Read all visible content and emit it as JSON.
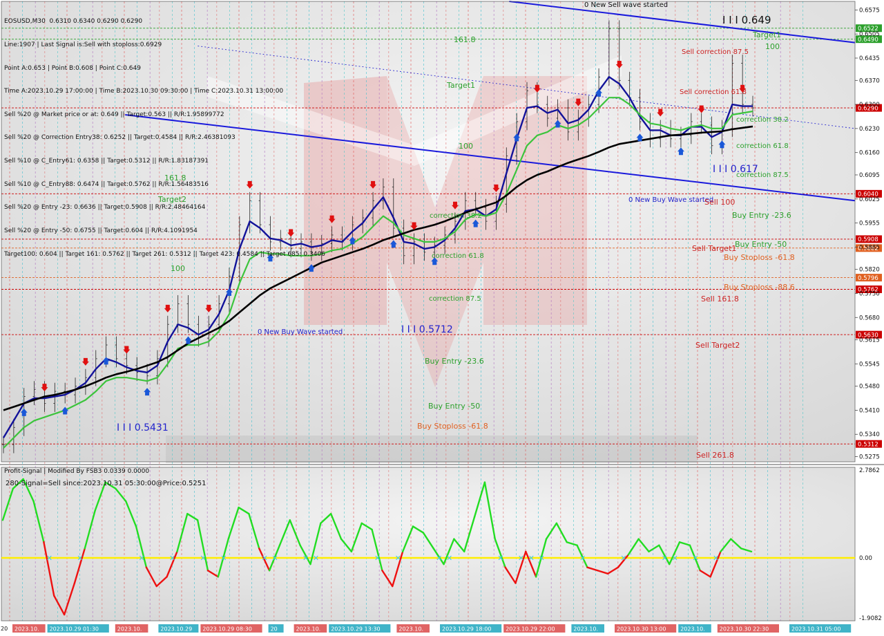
{
  "header": {
    "lines": [
      "EOSUSD,M30  0.6310 0.6340 0.6290 0.6290",
      "Line:1907 | Last Signal is:Sell with stoploss:0.6929",
      "Point A:0.653 | Point B:0.608 | Point C:0.649",
      "Time A:2023.10.29 17:00:00 | Time B:2023.10.30 09:30:00 | Time C:2023.10.31 13:00:00",
      "Sell %20 @ Market price or at: 0.649 || Target:0.563 || R/R:1.95899772",
      "Sell %20 @ Correction Entry38: 0.6252 || Target:0.4584 || R/R:2.46381093",
      "Sell %10 @ C_Entry61: 0.6358 || Target:0.5312 || R/R:1.83187391",
      "Sell %10 @ C_Entry88: 0.6474 || Target:0.5762 || R/R:1.5648351​6",
      "Sell %20 @ Entry -23: 0.6636 || Target:0.5908 || R/R:2.48464164",
      "Sell %20 @ Entry -50: 0.6755 || Target:0.604 || R/R:4.1091954",
      "Target100: 0.604 || Target 161: 0.5762 || Target 261: 0.5312 || Target 423: 0.4584 || Target 685: 0.3406"
    ]
  },
  "indicator": {
    "title": "Profit-Signal | Modified By FSB3 0.0339 0.0000",
    "signal": "280-Signal=Sell since:2023.10.31 05:30:00@Price:0.5251",
    "ticks": [
      "2.7862",
      "0.00",
      "-1.9082"
    ]
  },
  "price_axis": {
    "ticks": [
      "0.6575",
      "0.6505",
      "0.6435",
      "0.6370",
      "0.6300",
      "0.6230",
      "0.6160",
      "0.6095",
      "0.6025",
      "0.5955",
      "0.5885",
      "0.5820",
      "0.5750",
      "0.5680",
      "0.5615",
      "0.5545",
      "0.5480",
      "0.5410",
      "0.5340",
      "0.5275"
    ]
  },
  "levels": [
    {
      "label": "0.6522",
      "color": "#2ca02c"
    },
    {
      "label": "0.6490",
      "color": "#2ca02c"
    },
    {
      "label": "0.6290",
      "color": "#cc0000"
    },
    {
      "label": "0.6040",
      "color": "#cc0000"
    },
    {
      "label": "0.5908",
      "color": "#cc0000"
    },
    {
      "label": "0.5882",
      "color": "#e06020"
    },
    {
      "label": "0.5796",
      "color": "#e06020"
    },
    {
      "label": "0.5762",
      "color": "#cc0000"
    },
    {
      "label": "0.5630",
      "color": "#cc0000"
    },
    {
      "label": "0.5312",
      "color": "#cc0000"
    }
  ],
  "annotations": [
    {
      "text": "I I I 0.649",
      "color": "#111111"
    },
    {
      "text": "Target1",
      "color": "#2ca02c"
    },
    {
      "text": "100",
      "color": "#2ca02c"
    },
    {
      "text": "Sell correction 87.5",
      "color": "#cc2222"
    },
    {
      "text": "Sell correction 61.8",
      "color": "#cc2222"
    },
    {
      "text": "correction 38.2",
      "color": "#2ca02c"
    },
    {
      "text": "correction 61.8",
      "color": "#2ca02c"
    },
    {
      "text": "correction 87.5",
      "color": "#2ca02c"
    },
    {
      "text": "I I I 0.617",
      "color": "#2222cc"
    },
    {
      "text": "0 New Buy Wave started",
      "color": "#2222cc"
    },
    {
      "text": "Sell 100",
      "color": "#cc2222"
    },
    {
      "text": "Buy Entry -23.6",
      "color": "#2ca02c"
    },
    {
      "text": "Buy Entry -50",
      "color": "#2ca02c"
    },
    {
      "text": "Sell Target1",
      "color": "#cc2222"
    },
    {
      "text": "Buy Stoploss -61.8",
      "color": "#e06020"
    },
    {
      "text": "Buy Stoploss -88.6",
      "color": "#e06020"
    },
    {
      "text": "Sell 161.8",
      "color": "#cc2222"
    },
    {
      "text": "Sell Target2",
      "color": "#cc2222"
    },
    {
      "text": "Sell  261.8",
      "color": "#cc2222"
    },
    {
      "text": "161.8",
      "color": "#2ca02c"
    },
    {
      "text": "Target1",
      "color": "#2ca02c"
    },
    {
      "text": "100",
      "color": "#2ca02c"
    },
    {
      "text": "161.8",
      "color": "#2ca02c"
    },
    {
      "text": "Target2",
      "color": "#2ca02c"
    },
    {
      "text": "100",
      "color": "#2ca02c"
    },
    {
      "text": "correction 38.2",
      "color": "#2ca02c"
    },
    {
      "text": "correction 61.8",
      "color": "#2ca02c"
    },
    {
      "text": "correction 87.5",
      "color": "#2ca02c"
    },
    {
      "text": "I I I 0.5712",
      "color": "#2222cc"
    },
    {
      "text": "0 New Buy Wave started",
      "color": "#2222cc"
    },
    {
      "text": "Buy Entry -23.6",
      "color": "#2ca02c"
    },
    {
      "text": "Buy Entry -50",
      "color": "#2ca02c"
    },
    {
      "text": "Buy Stoploss -61.8",
      "color": "#e06020"
    },
    {
      "text": "I I I 0.5431",
      "color": "#2222cc"
    },
    {
      "text": "0 New Sell wave started",
      "color": "#111111"
    }
  ],
  "time_axis": {
    "labels": [
      "2023.10.",
      "2023.10.29 01:30",
      "2023.10.",
      "2023.10.29",
      "2023.10.29 08:30",
      "20",
      "2023.10.",
      "2023.10.29 13:30",
      "2023.10.",
      "2023.10.29 18:00",
      "2023.10.29 22:00",
      "2023.10.",
      "2023.10.30 13:00",
      "2023.10.",
      "2023.10.30 22:30",
      "2023.10.31 05:00"
    ],
    "prefix": "20"
  },
  "chart_data": {
    "type": "line",
    "title": "EOSUSD,M30",
    "ylim": [
      0.526,
      0.66
    ],
    "series": [
      {
        "name": "price",
        "values": [
          0.531,
          0.536,
          0.545,
          0.547,
          0.543,
          0.5465,
          0.5455,
          0.548,
          0.5505,
          0.556,
          0.56,
          0.556,
          0.554,
          0.552,
          0.551,
          0.556,
          0.566,
          0.572,
          0.566,
          0.562,
          0.566,
          0.572,
          0.58,
          0.595,
          0.602,
          0.595,
          0.59,
          0.591,
          0.588,
          0.59,
          0.587,
          0.5895,
          0.592,
          0.59,
          0.595,
          0.597,
          0.602,
          0.606,
          0.594,
          0.586,
          0.59,
          0.587,
          0.589,
          0.592,
          0.596,
          0.602,
          0.6,
          0.596,
          0.601,
          0.615,
          0.625,
          0.634,
          0.63,
          0.626,
          0.629,
          0.622,
          0.626,
          0.63,
          0.638,
          0.652,
          0.637,
          0.632,
          0.625,
          0.62,
          0.623,
          0.62,
          0.621,
          0.625,
          0.624,
          0.618,
          0.623,
          0.642,
          0.63,
          0.629
        ]
      },
      {
        "name": "ma-fast",
        "values": [
          0.533,
          0.538,
          0.543,
          0.5445,
          0.5445,
          0.545,
          0.5455,
          0.547,
          0.549,
          0.553,
          0.556,
          0.555,
          0.5535,
          0.5525,
          0.552,
          0.554,
          0.561,
          0.566,
          0.565,
          0.563,
          0.5645,
          0.569,
          0.576,
          0.588,
          0.596,
          0.594,
          0.591,
          0.5905,
          0.589,
          0.5895,
          0.5885,
          0.589,
          0.5905,
          0.59,
          0.593,
          0.5955,
          0.5995,
          0.603,
          0.597,
          0.59,
          0.5895,
          0.588,
          0.5885,
          0.5905,
          0.594,
          0.599,
          0.5995,
          0.5975,
          0.5995,
          0.61,
          0.62,
          0.629,
          0.6295,
          0.6275,
          0.6285,
          0.6245,
          0.6255,
          0.6285,
          0.634,
          0.638,
          0.636,
          0.632,
          0.6265,
          0.6225,
          0.6225,
          0.621,
          0.621,
          0.6235,
          0.6235,
          0.6205,
          0.622,
          0.63,
          0.6295,
          0.6295
        ]
      },
      {
        "name": "ma-medium",
        "values": [
          0.53,
          0.533,
          0.536,
          0.538,
          0.539,
          0.54,
          0.541,
          0.5425,
          0.544,
          0.5465,
          0.5495,
          0.5505,
          0.5505,
          0.55,
          0.5495,
          0.5505,
          0.5545,
          0.559,
          0.56,
          0.56,
          0.561,
          0.564,
          0.569,
          0.578,
          0.585,
          0.587,
          0.5865,
          0.5865,
          0.586,
          0.586,
          0.586,
          0.5865,
          0.5875,
          0.588,
          0.5895,
          0.5915,
          0.5945,
          0.5975,
          0.5955,
          0.592,
          0.591,
          0.59,
          0.59,
          0.591,
          0.593,
          0.5965,
          0.598,
          0.5975,
          0.5985,
          0.604,
          0.611,
          0.618,
          0.621,
          0.622,
          0.624,
          0.623,
          0.624,
          0.626,
          0.629,
          0.632,
          0.632,
          0.63,
          0.627,
          0.6245,
          0.624,
          0.623,
          0.6225,
          0.6235,
          0.624,
          0.623,
          0.623,
          0.627,
          0.6275,
          0.628
        ]
      },
      {
        "name": "ma-slow",
        "values": [
          0.541,
          0.542,
          0.543,
          0.544,
          0.545,
          0.5455,
          0.5462,
          0.547,
          0.548,
          0.5492,
          0.5505,
          0.5515,
          0.5522,
          0.553,
          0.554,
          0.555,
          0.5565,
          0.5585,
          0.5605,
          0.562,
          0.5635,
          0.565,
          0.567,
          0.5695,
          0.572,
          0.5745,
          0.5765,
          0.578,
          0.5795,
          0.581,
          0.5825,
          0.584,
          0.585,
          0.586,
          0.587,
          0.588,
          0.5892,
          0.5905,
          0.5915,
          0.5925,
          0.5935,
          0.5942,
          0.595,
          0.596,
          0.5972,
          0.5985,
          0.5995,
          0.6005,
          0.6015,
          0.6035,
          0.606,
          0.608,
          0.6095,
          0.6105,
          0.6118,
          0.613,
          0.614,
          0.615,
          0.6162,
          0.6175,
          0.6185,
          0.619,
          0.6195,
          0.62,
          0.6205,
          0.621,
          0.6212,
          0.6215,
          0.6218,
          0.622,
          0.6222,
          0.6228,
          0.6232,
          0.6236
        ]
      }
    ],
    "channels": [
      {
        "name": "upper-channel",
        "from": [
          0.595,
          0.66
        ],
        "to": [
          1.0,
          0.648
        ]
      },
      {
        "name": "lower-channel",
        "from": [
          0.145,
          0.627
        ],
        "to": [
          1.0,
          0.602
        ]
      }
    ],
    "oscillator": {
      "ylim": [
        -1.9082,
        2.7862
      ],
      "values": [
        1.2,
        2.2,
        2.5,
        1.8,
        0.5,
        -1.2,
        -1.8,
        -0.8,
        0.3,
        1.5,
        2.4,
        2.2,
        1.8,
        1.0,
        -0.3,
        -0.9,
        -0.6,
        0.2,
        1.4,
        1.2,
        -0.4,
        -0.6,
        0.6,
        1.6,
        1.4,
        0.3,
        -0.4,
        0.4,
        1.2,
        0.4,
        -0.2,
        1.1,
        1.4,
        0.6,
        0.2,
        1.1,
        0.9,
        -0.4,
        -0.9,
        0.2,
        1.0,
        0.8,
        0.3,
        -0.2,
        0.6,
        0.2,
        1.3,
        2.4,
        0.6,
        -0.3,
        -0.8,
        0.2,
        -0.6,
        0.6,
        1.1,
        0.5,
        0.4,
        -0.3,
        -0.4,
        -0.5,
        -0.3,
        0.1,
        0.6,
        0.2,
        0.4,
        -0.2,
        0.5,
        0.4,
        -0.4,
        -0.6,
        0.2,
        0.6,
        0.3,
        0.2
      ]
    }
  }
}
